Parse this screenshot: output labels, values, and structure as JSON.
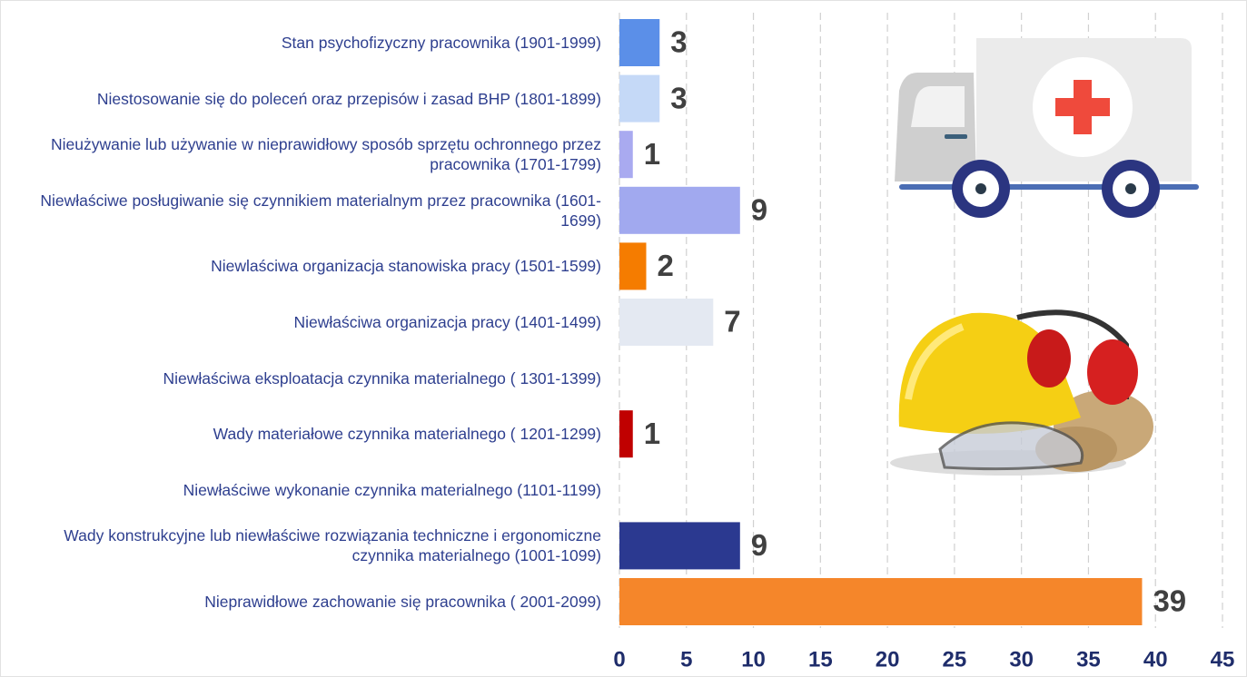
{
  "chart_data": {
    "type": "bar",
    "orientation": "horizontal",
    "categories": [
      "Stan psychofizyczny pracownika (1901-1999)",
      "Niestosowanie się do poleceń oraz przepisów i zasad BHP (1801-1899)",
      "Nieużywanie lub używanie w nieprawidłowy sposób sprzętu ochronnego przez pracownika  (1701-1799)",
      "Niewłaściwe posługiwanie się czynnikiem materialnym przez pracownika (1601-1699)",
      "Niewlaściwa organizacja stanowiska pracy (1501-1599)",
      "Niewłaściwa organizacja pracy (1401-1499)",
      "Niewłaściwa eksploatacja czynnika materialnego ( 1301-1399)",
      "Wady materiałowe czynnika materialnego ( 1201-1299)",
      "Niewłaściwe wykonanie czynnika materialnego (1101-1199)",
      "Wady konstrukcyjne lub niewłaściwe rozwiązania techniczne i ergonomiczne czynnika materialnego (1001-1099)",
      "Nieprawidłowe zachowanie się pracownika ( 2001-2099)"
    ],
    "values": [
      3,
      3,
      1,
      9,
      2,
      7,
      null,
      1,
      null,
      9,
      39
    ],
    "colors": [
      "#5b8fe8",
      "#c5d9f7",
      "#a9aaf0",
      "#a1a9ef",
      "#f57c00",
      "#e4e9f2",
      null,
      "#c00000",
      null,
      "#2b3990",
      "#f5862a"
    ],
    "xlim": [
      0,
      45
    ],
    "xticks": [
      0,
      5,
      10,
      15,
      20,
      25,
      30,
      35,
      40,
      45
    ],
    "grid": true
  }
}
